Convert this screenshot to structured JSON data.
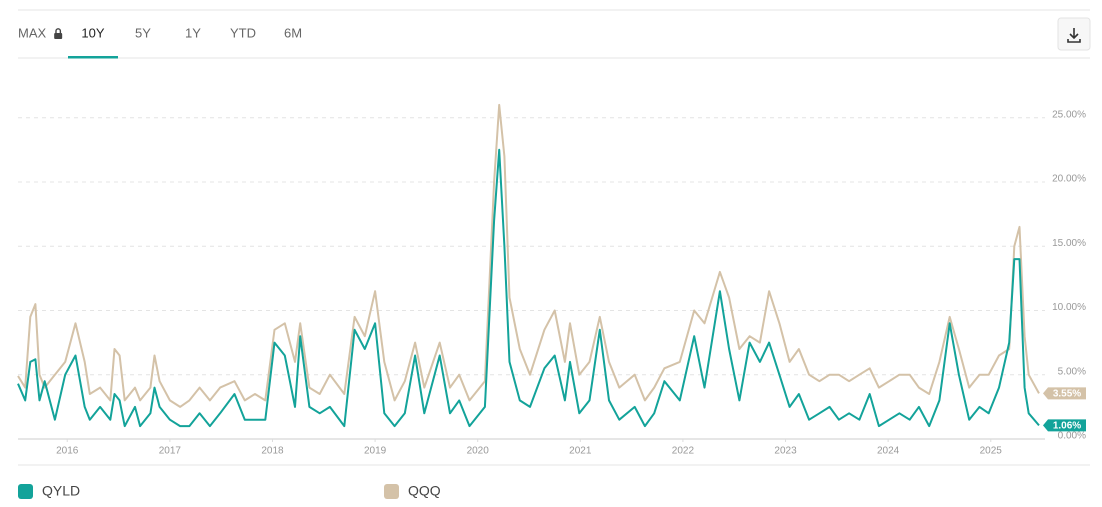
{
  "toolbar": {
    "ranges": [
      "MAX",
      "10Y",
      "5Y",
      "1Y",
      "YTD",
      "6M"
    ],
    "active_index": 1,
    "locked_index": 0
  },
  "chart_data": {
    "type": "line",
    "x": [
      2015.52,
      2015.59,
      2015.64,
      2015.69,
      2015.73,
      2015.78,
      2015.88,
      2015.98,
      2016.08,
      2016.17,
      2016.22,
      2016.32,
      2016.42,
      2016.46,
      2016.51,
      2016.56,
      2016.66,
      2016.71,
      2016.81,
      2016.85,
      2016.9,
      2017.0,
      2017.1,
      2017.19,
      2017.29,
      2017.39,
      2017.49,
      2017.63,
      2017.73,
      2017.83,
      2017.93,
      2018.02,
      2018.12,
      2018.22,
      2018.27,
      2018.36,
      2018.46,
      2018.56,
      2018.7,
      2018.8,
      2018.9,
      2019.0,
      2019.09,
      2019.19,
      2019.29,
      2019.39,
      2019.48,
      2019.63,
      2019.73,
      2019.82,
      2019.92,
      2020.07,
      2020.16,
      2020.21,
      2020.26,
      2020.31,
      2020.41,
      2020.51,
      2020.65,
      2020.75,
      2020.85,
      2020.9,
      2020.99,
      2021.09,
      2021.19,
      2021.28,
      2021.38,
      2021.53,
      2021.63,
      2021.72,
      2021.82,
      2021.97,
      2022.11,
      2022.21,
      2022.36,
      2022.45,
      2022.55,
      2022.65,
      2022.75,
      2022.84,
      2022.94,
      2023.04,
      2023.13,
      2023.23,
      2023.33,
      2023.43,
      2023.52,
      2023.62,
      2023.72,
      2023.82,
      2023.91,
      2024.01,
      2024.11,
      2024.21,
      2024.3,
      2024.4,
      2024.5,
      2024.6,
      2024.69,
      2024.79,
      2024.89,
      2024.98,
      2025.08,
      2025.18,
      2025.23,
      2025.28,
      2025.33,
      2025.37,
      2025.47
    ],
    "series": [
      {
        "name": "QYLD",
        "color": "#13a39a",
        "last_label": "1.06%",
        "values": [
          4.3,
          3,
          6,
          6.2,
          3,
          4.5,
          1.5,
          5,
          6.5,
          2.5,
          1.5,
          2.5,
          1.5,
          3.5,
          3,
          1,
          2.5,
          1,
          2,
          4,
          2.5,
          1.5,
          1,
          1,
          2,
          1,
          2,
          3.5,
          1.5,
          1.5,
          1.5,
          7.5,
          6.5,
          2.5,
          8,
          2.5,
          2,
          2.5,
          1,
          8.5,
          7,
          9,
          2,
          1,
          2,
          6.5,
          2,
          6.5,
          2,
          3,
          1,
          2.5,
          17,
          22.5,
          15,
          6,
          3,
          2.5,
          5.5,
          6.5,
          3,
          6,
          2,
          3,
          8.5,
          3,
          1.5,
          2.5,
          1,
          2,
          4.5,
          3,
          8,
          4,
          11.5,
          7,
          3,
          7.5,
          6,
          7.5,
          5,
          2.5,
          3.5,
          1.5,
          2,
          2.5,
          1.5,
          2,
          1.5,
          3.5,
          1,
          1.5,
          2,
          1.5,
          2.5,
          1,
          3,
          9,
          5,
          1.5,
          2.5,
          2,
          4,
          7.5,
          14,
          14,
          4,
          2,
          1.06
        ]
      },
      {
        "name": "QQQ",
        "color": "#d4c2a8",
        "last_label": "3.55%",
        "values": [
          4.9,
          4,
          9.5,
          10.5,
          5,
          4,
          5,
          6,
          9,
          6,
          3.5,
          4,
          3,
          7,
          6.5,
          3,
          4,
          3,
          4,
          6.5,
          4.5,
          3,
          2.5,
          3,
          4,
          3,
          4,
          4.5,
          3,
          3.5,
          3,
          8.5,
          9,
          6,
          9,
          4,
          3.5,
          5,
          3.5,
          9.5,
          8,
          11.5,
          6,
          3,
          4.5,
          7.5,
          4,
          7.5,
          4,
          5,
          3,
          4.5,
          20,
          26,
          22,
          11,
          7,
          5,
          8.5,
          10,
          6,
          9,
          5,
          6,
          9.5,
          6,
          4,
          5,
          3,
          4,
          5.5,
          6,
          10,
          9,
          13,
          11,
          7,
          8,
          7.5,
          11.5,
          9,
          6,
          7,
          5,
          4.5,
          5,
          5,
          4.5,
          5,
          5.5,
          4,
          4.5,
          5,
          5,
          4,
          3.5,
          6,
          9.5,
          7,
          4,
          5,
          5,
          6.5,
          7,
          15,
          16.5,
          8,
          5,
          3.55
        ]
      }
    ],
    "xlim": [
      2015.52,
      2025.48
    ],
    "xticks": [
      2016,
      2017,
      2018,
      2019,
      2020,
      2021,
      2022,
      2023,
      2024,
      2025
    ],
    "ylim": [
      0,
      27
    ],
    "yticks": [
      {
        "value": 0,
        "label": "0.00%"
      },
      {
        "value": 5,
        "label": "5.00%"
      },
      {
        "value": 10,
        "label": "10.00%"
      },
      {
        "value": 15,
        "label": "15.00%"
      },
      {
        "value": 20,
        "label": "20.00%"
      },
      {
        "value": 25,
        "label": "25.00%"
      }
    ],
    "grid": true
  }
}
